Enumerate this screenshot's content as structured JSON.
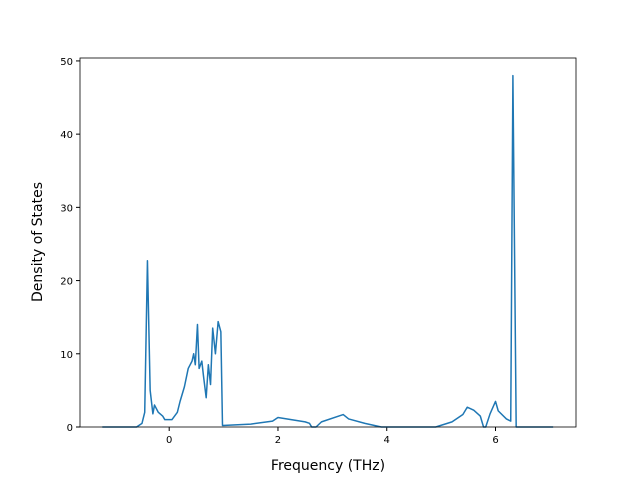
{
  "chart_data": {
    "type": "line",
    "x_label": "Frequency (THz)",
    "y_label": "Density of States",
    "xlim": [
      -1.64,
      7.48
    ],
    "ylim": [
      0,
      50.4
    ],
    "xticks": [
      0,
      2,
      4,
      6
    ],
    "yticks": [
      0,
      10,
      20,
      30,
      40,
      50
    ],
    "x": [
      -1.23,
      -0.6,
      -0.5,
      -0.45,
      -0.4,
      -0.35,
      -0.3,
      -0.27,
      -0.2,
      -0.12,
      -0.08,
      0.05,
      0.15,
      0.2,
      0.28,
      0.35,
      0.42,
      0.45,
      0.48,
      0.52,
      0.55,
      0.6,
      0.63,
      0.68,
      0.72,
      0.76,
      0.8,
      0.85,
      0.9,
      0.95,
      0.98,
      1.5,
      1.9,
      2.0,
      2.5,
      2.58,
      2.62,
      2.7,
      2.8,
      3.2,
      3.3,
      3.6,
      3.9,
      4.9,
      5.2,
      5.4,
      5.48,
      5.6,
      5.72,
      5.78,
      5.82,
      5.9,
      6.0,
      6.05,
      6.2,
      6.28,
      6.32,
      6.38,
      7.06
    ],
    "series": [
      {
        "color": "#1f77b4",
        "values": [
          0,
          0,
          0.5,
          2,
          22.7,
          5,
          1.8,
          3,
          2,
          1.5,
          1.0,
          1.0,
          2,
          3.5,
          5.5,
          8,
          9,
          10,
          8.5,
          14,
          8,
          9,
          7,
          4,
          8.5,
          5.8,
          13.5,
          10,
          14.4,
          13,
          0.2,
          0.4,
          0.8,
          1.3,
          0.7,
          0.5,
          0,
          0,
          0.7,
          1.7,
          1.1,
          0.5,
          0,
          0,
          0.7,
          1.7,
          2.7,
          2.3,
          1.5,
          0,
          0,
          1.8,
          3.5,
          2.2,
          1.1,
          0.8,
          48,
          0,
          0
        ]
      }
    ]
  }
}
